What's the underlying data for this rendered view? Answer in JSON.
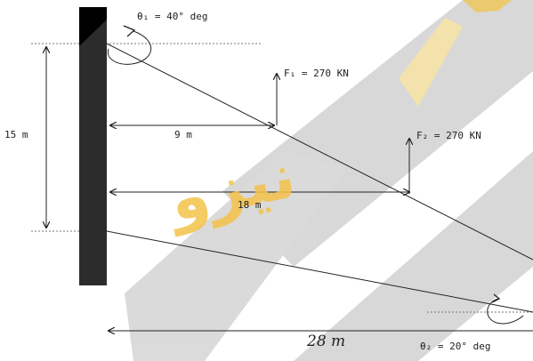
{
  "labels": {
    "theta1": "θ₁ = 40° deg",
    "theta2": "θ₂ = 20° deg",
    "force1": "F₁ = 270 KN",
    "force2": "F₂ = 270 KN",
    "height": "15 m",
    "dist1": "9 m",
    "dist2": "18 m",
    "dist3": "28 m"
  },
  "watermark": {
    "text": "نیزو"
  }
}
